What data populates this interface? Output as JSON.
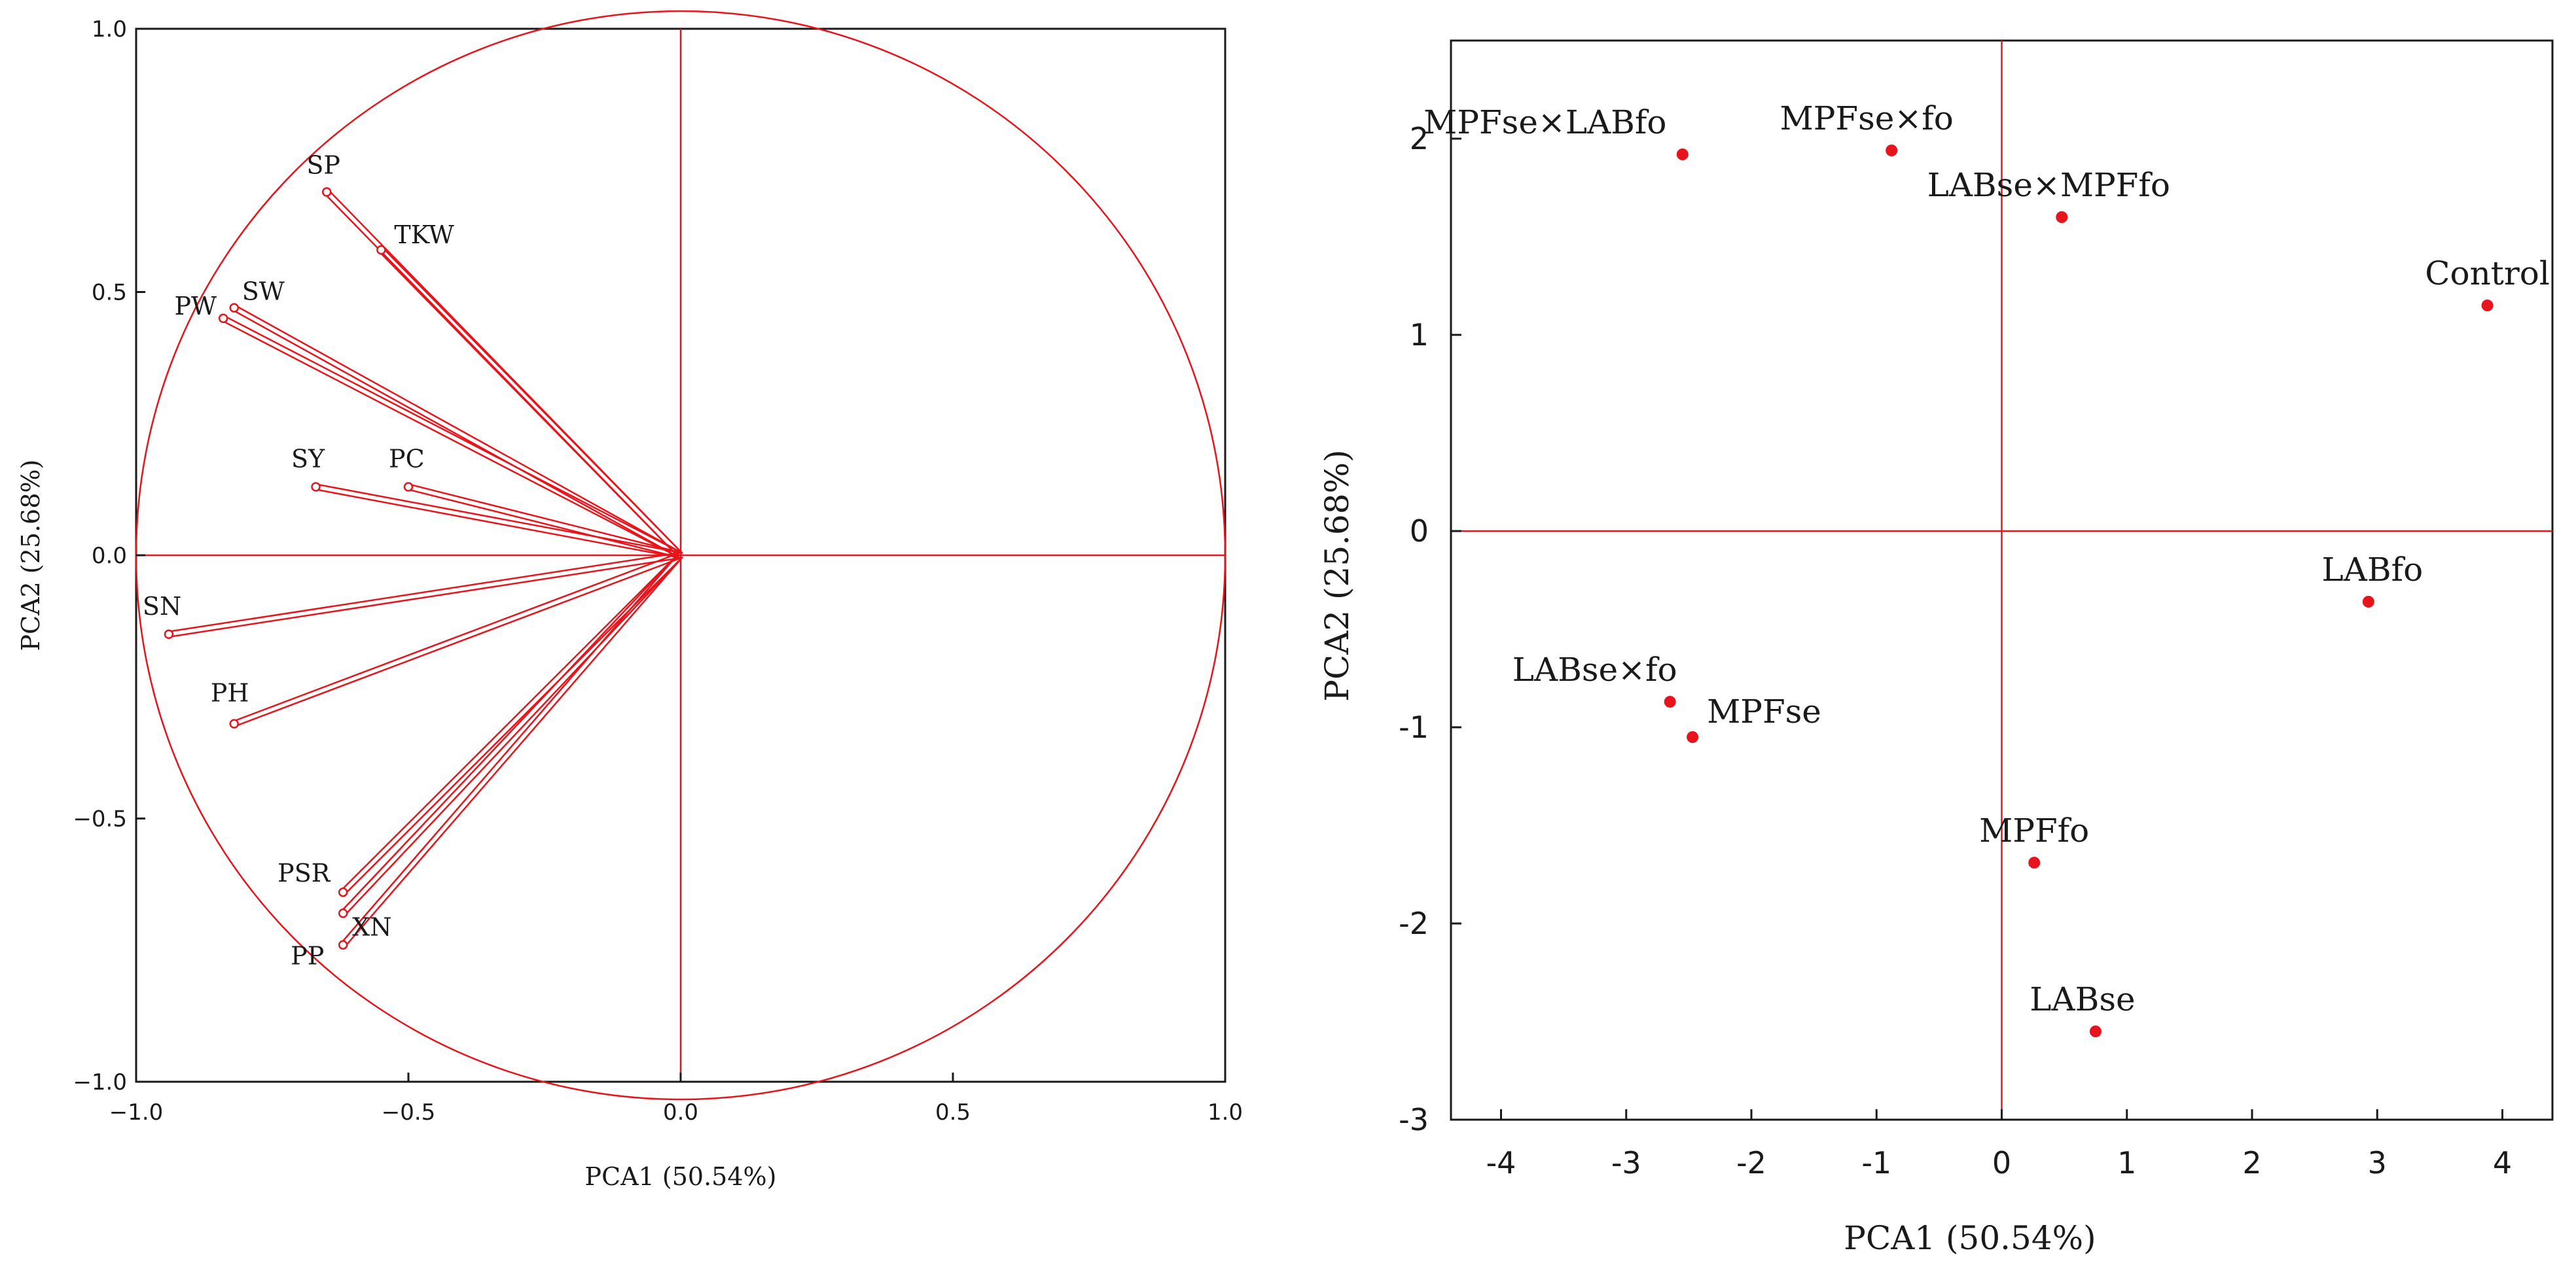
{
  "colors": {
    "accent": "#e8141c",
    "frame": "#1a1a1a",
    "text": "#1a1a1a"
  },
  "chart_data": [
    {
      "type": "scatter",
      "subtype": "pca-loadings-circle",
      "xlabel": "PCA1 (50.54%)",
      "ylabel": "PCA2 (25.68%)",
      "xlim": [
        -1.0,
        1.0
      ],
      "ylim": [
        -1.0,
        1.0
      ],
      "xticks": [
        "−1.0",
        "−0.5",
        "0.0",
        "0.5",
        "1.0"
      ],
      "yticks": [
        "1.0",
        "0.5",
        "0.0",
        "−0.5",
        "−1.0"
      ],
      "circle_radius": 1.0,
      "grid": false,
      "variables": [
        {
          "label": "SP",
          "x": -0.65,
          "y": 0.69
        },
        {
          "label": "TKW",
          "x": -0.55,
          "y": 0.58
        },
        {
          "label": "SW",
          "x": -0.82,
          "y": 0.47
        },
        {
          "label": "PW",
          "x": -0.84,
          "y": 0.45
        },
        {
          "label": "SY",
          "x": -0.67,
          "y": 0.13
        },
        {
          "label": "PC",
          "x": -0.5,
          "y": 0.13
        },
        {
          "label": "SN",
          "x": -0.94,
          "y": -0.15
        },
        {
          "label": "PH",
          "x": -0.82,
          "y": -0.32
        },
        {
          "label": "PSR",
          "x": -0.62,
          "y": -0.64
        },
        {
          "label": "XN",
          "x": -0.62,
          "y": -0.68
        },
        {
          "label": "PP",
          "x": -0.62,
          "y": -0.74
        }
      ]
    },
    {
      "type": "scatter",
      "subtype": "pca-scores",
      "xlabel": "PCA1 (50.54%)",
      "ylabel": "PCA2 (25.68%)",
      "xlim": [
        -4.4,
        4.4
      ],
      "ylim": [
        -3,
        2.5
      ],
      "xticks": [
        "-4",
        "-3",
        "-2",
        "-1",
        "0",
        "1",
        "2",
        "3",
        "4"
      ],
      "yticks": [
        "2",
        "1",
        "0",
        "-1",
        "-2",
        "-3"
      ],
      "grid": false,
      "points": [
        {
          "label": "MPFse×LABfo",
          "x": -2.55,
          "y": 1.92
        },
        {
          "label": "MPFse×fo",
          "x": -0.88,
          "y": 1.94
        },
        {
          "label": "LABse×MPFfo",
          "x": 0.48,
          "y": 1.6
        },
        {
          "label": "Control",
          "x": 3.88,
          "y": 1.15
        },
        {
          "label": "LABfo",
          "x": 2.93,
          "y": -0.36
        },
        {
          "label": "LABse×fo",
          "x": -2.65,
          "y": -0.87
        },
        {
          "label": "MPFse",
          "x": -2.47,
          "y": -1.05
        },
        {
          "label": "MPFfo",
          "x": 0.26,
          "y": -1.69
        },
        {
          "label": "LABse",
          "x": 0.75,
          "y": -2.55
        }
      ]
    }
  ]
}
